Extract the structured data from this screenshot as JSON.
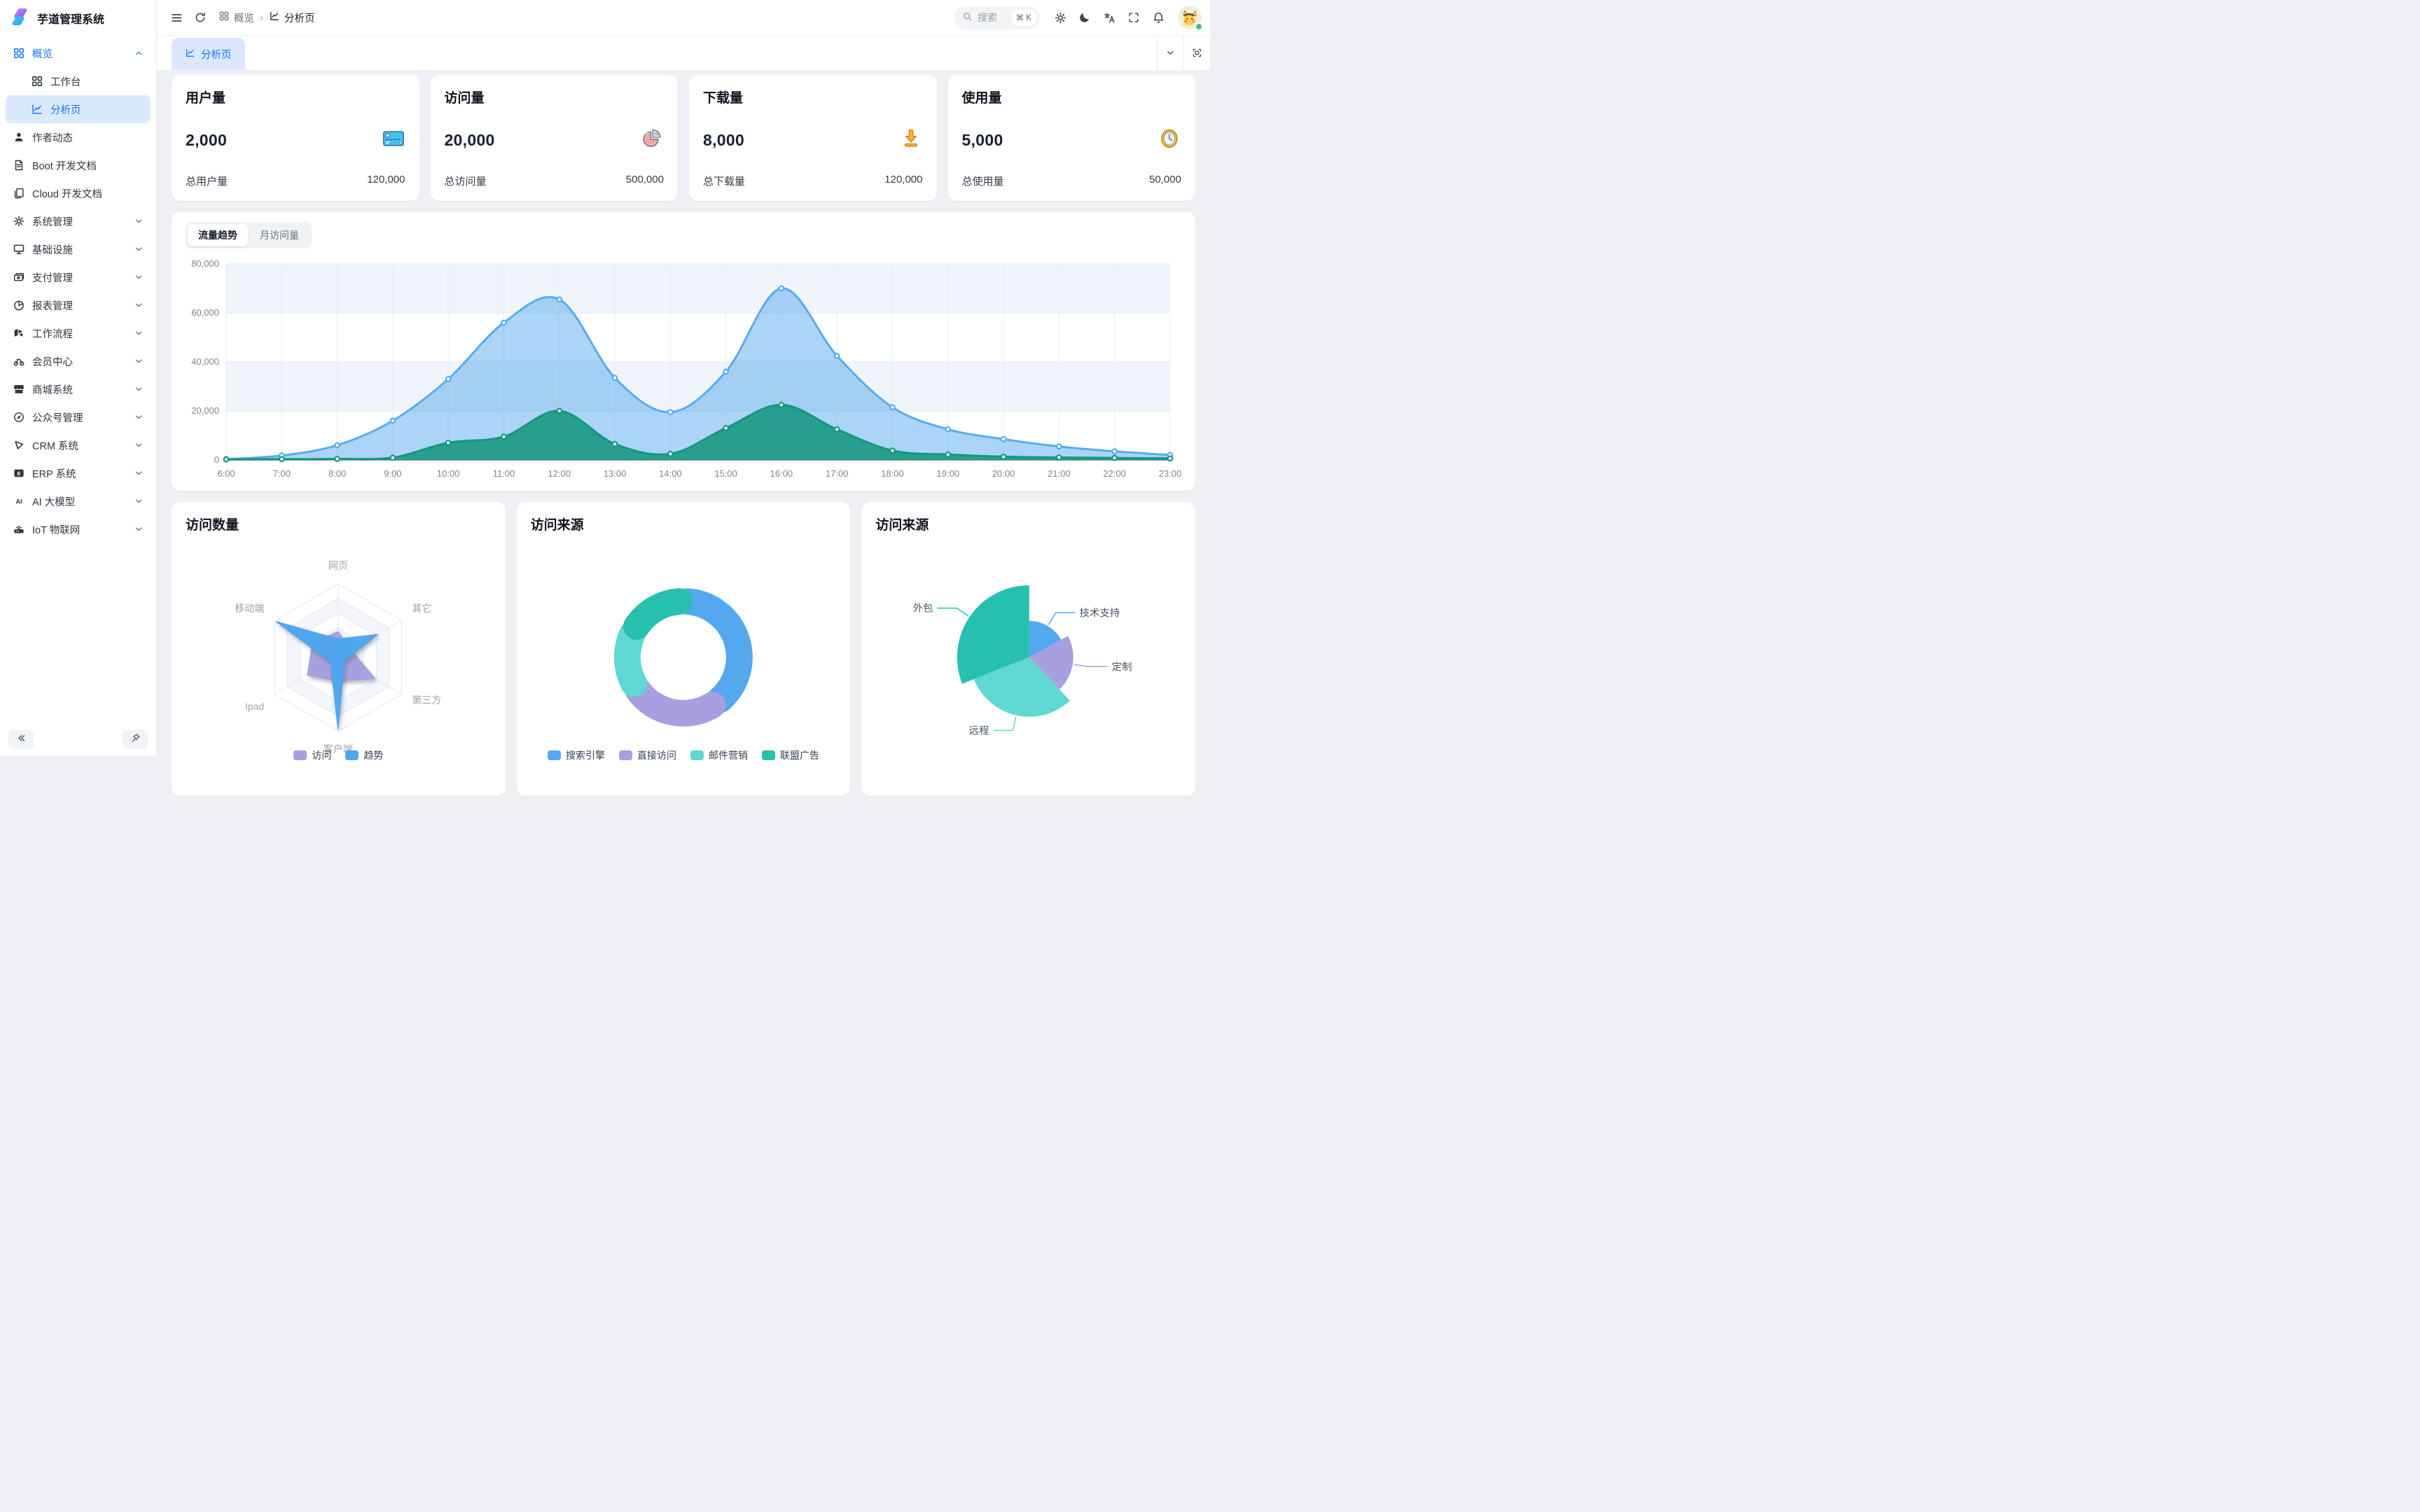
{
  "app": {
    "title": "芋道管理系统"
  },
  "sidebar": {
    "menu": [
      {
        "key": "overview",
        "label": "概览",
        "icon": "grid",
        "chevron": "up",
        "state": "active-parent"
      },
      {
        "key": "workbench",
        "label": "工作台",
        "icon": "grid",
        "child": true
      },
      {
        "key": "analysis",
        "label": "分析页",
        "icon": "chart",
        "child": true,
        "state": "selected"
      },
      {
        "key": "author",
        "label": "作者动态",
        "icon": "user"
      },
      {
        "key": "boot-doc",
        "label": "Boot 开发文档",
        "icon": "doc"
      },
      {
        "key": "cloud-doc",
        "label": "Cloud 开发文档",
        "icon": "docs"
      },
      {
        "key": "system",
        "label": "系统管理",
        "icon": "gear",
        "chevron": "down"
      },
      {
        "key": "infra",
        "label": "基础设施",
        "icon": "monitor",
        "chevron": "down"
      },
      {
        "key": "pay",
        "label": "支付管理",
        "icon": "wallet",
        "chevron": "down"
      },
      {
        "key": "report",
        "label": "报表管理",
        "icon": "pie",
        "chevron": "down"
      },
      {
        "key": "workflow",
        "label": "工作流程",
        "icon": "workflow",
        "chevron": "down"
      },
      {
        "key": "member",
        "label": "会员中心",
        "icon": "member",
        "chevron": "down"
      },
      {
        "key": "mall",
        "label": "商城系统",
        "icon": "store",
        "chevron": "down"
      },
      {
        "key": "mp",
        "label": "公众号管理",
        "icon": "compass",
        "chevron": "down"
      },
      {
        "key": "crm",
        "label": "CRM 系统",
        "icon": "crm",
        "chevron": "down"
      },
      {
        "key": "erp",
        "label": "ERP 系统",
        "icon": "erp",
        "chevron": "down"
      },
      {
        "key": "ai",
        "label": "AI 大模型",
        "icon": "ai",
        "chevron": "down"
      },
      {
        "key": "iot",
        "label": "IoT 物联网",
        "icon": "iot",
        "chevron": "down"
      }
    ]
  },
  "header": {
    "breadcrumb": [
      {
        "label": "概览",
        "icon": "grid"
      },
      {
        "label": "分析页",
        "icon": "chart"
      }
    ],
    "search": {
      "placeholder": "搜索",
      "shortcut": "⌘ K"
    }
  },
  "tabs": {
    "active": "分析页"
  },
  "stats": {
    "cards": [
      {
        "key": "users",
        "title": "用户量",
        "value": "2,000",
        "icon": "credit-card",
        "footer_label": "总用户量",
        "footer_value": "120,000"
      },
      {
        "key": "visits",
        "title": "访问量",
        "value": "20,000",
        "icon": "pie-percent",
        "footer_label": "总访问量",
        "footer_value": "500,000"
      },
      {
        "key": "downloads",
        "title": "下载量",
        "value": "8,000",
        "icon": "download",
        "footer_label": "总下载量",
        "footer_value": "120,000"
      },
      {
        "key": "usage",
        "title": "使用量",
        "value": "5,000",
        "icon": "clock",
        "footer_label": "总使用量",
        "footer_value": "50,000"
      }
    ]
  },
  "trend": {
    "tabs": [
      "流量趋势",
      "月访问量"
    ],
    "active_tab": "流量趋势"
  },
  "chart_data": [
    {
      "id": "traffic-trend",
      "type": "area",
      "x": [
        "6:00",
        "7:00",
        "8:00",
        "9:00",
        "10:00",
        "11:00",
        "12:00",
        "13:00",
        "14:00",
        "15:00",
        "16:00",
        "17:00",
        "18:00",
        "19:00",
        "20:00",
        "21:00",
        "22:00",
        "23:00"
      ],
      "ylim": [
        0,
        80000
      ],
      "yticks": [
        0,
        20000,
        40000,
        60000,
        80000
      ],
      "ytick_labels": [
        "0",
        "20,000",
        "40,000",
        "60,000",
        "80,000"
      ],
      "grid": true,
      "series": [
        {
          "name": "traffic-blue",
          "color": "#58abf0",
          "fill": "rgba(88,169,238,0.5)",
          "values": [
            300,
            1800,
            6000,
            16000,
            33000,
            56000,
            65500,
            33500,
            19500,
            36000,
            70000,
            42500,
            21500,
            12500,
            8500,
            5500,
            3500,
            2000
          ]
        },
        {
          "name": "traffic-teal",
          "color": "#14987f",
          "fill": "rgba(22,150,128,0.88)",
          "values": [
            200,
            300,
            400,
            900,
            7000,
            9500,
            20000,
            6500,
            2500,
            13000,
            22500,
            12500,
            3800,
            2200,
            1300,
            1000,
            800,
            600
          ]
        }
      ]
    },
    {
      "id": "visit-count-radar",
      "type": "radar",
      "title": "访问数量",
      "indicators": [
        "网页",
        "其它",
        "第三方",
        "客户端",
        "Ipad",
        "移动端"
      ],
      "max": 100,
      "series": [
        {
          "name": "访问",
          "color": "#a79fe0",
          "values": [
            35,
            20,
            58,
            32,
            48,
            40
          ]
        },
        {
          "name": "趋势",
          "color": "#4da7ee",
          "values": [
            25,
            62,
            10,
            97,
            12,
            97
          ]
        }
      ],
      "legend_position": "bottom"
    },
    {
      "id": "visit-source-donut",
      "type": "pie",
      "title": "访问来源",
      "slices": [
        {
          "name": "搜索引擎",
          "pct": 40,
          "color": "#54a8ee"
        },
        {
          "name": "直接访问",
          "pct": 26,
          "color": "#a79fe0"
        },
        {
          "name": "邮件营销",
          "pct": 17,
          "color": "#5fd8d2"
        },
        {
          "name": "联盟广告",
          "pct": 17,
          "color": "#27bfae"
        }
      ],
      "legend_position": "bottom"
    },
    {
      "id": "visit-source-rose",
      "type": "pie",
      "title": "访问来源",
      "slices": [
        {
          "name": "技术支持",
          "pct": 17,
          "radius": 52,
          "color": "#54a8ee"
        },
        {
          "name": "定制",
          "pct": 21,
          "radius": 63,
          "color": "#a79fe0"
        },
        {
          "name": "远程",
          "pct": 31,
          "radius": 85,
          "color": "#5fd8d2"
        },
        {
          "name": "外包",
          "pct": 31,
          "radius": 103,
          "color": "#27bfae"
        }
      ],
      "label_position": "outside"
    }
  ]
}
